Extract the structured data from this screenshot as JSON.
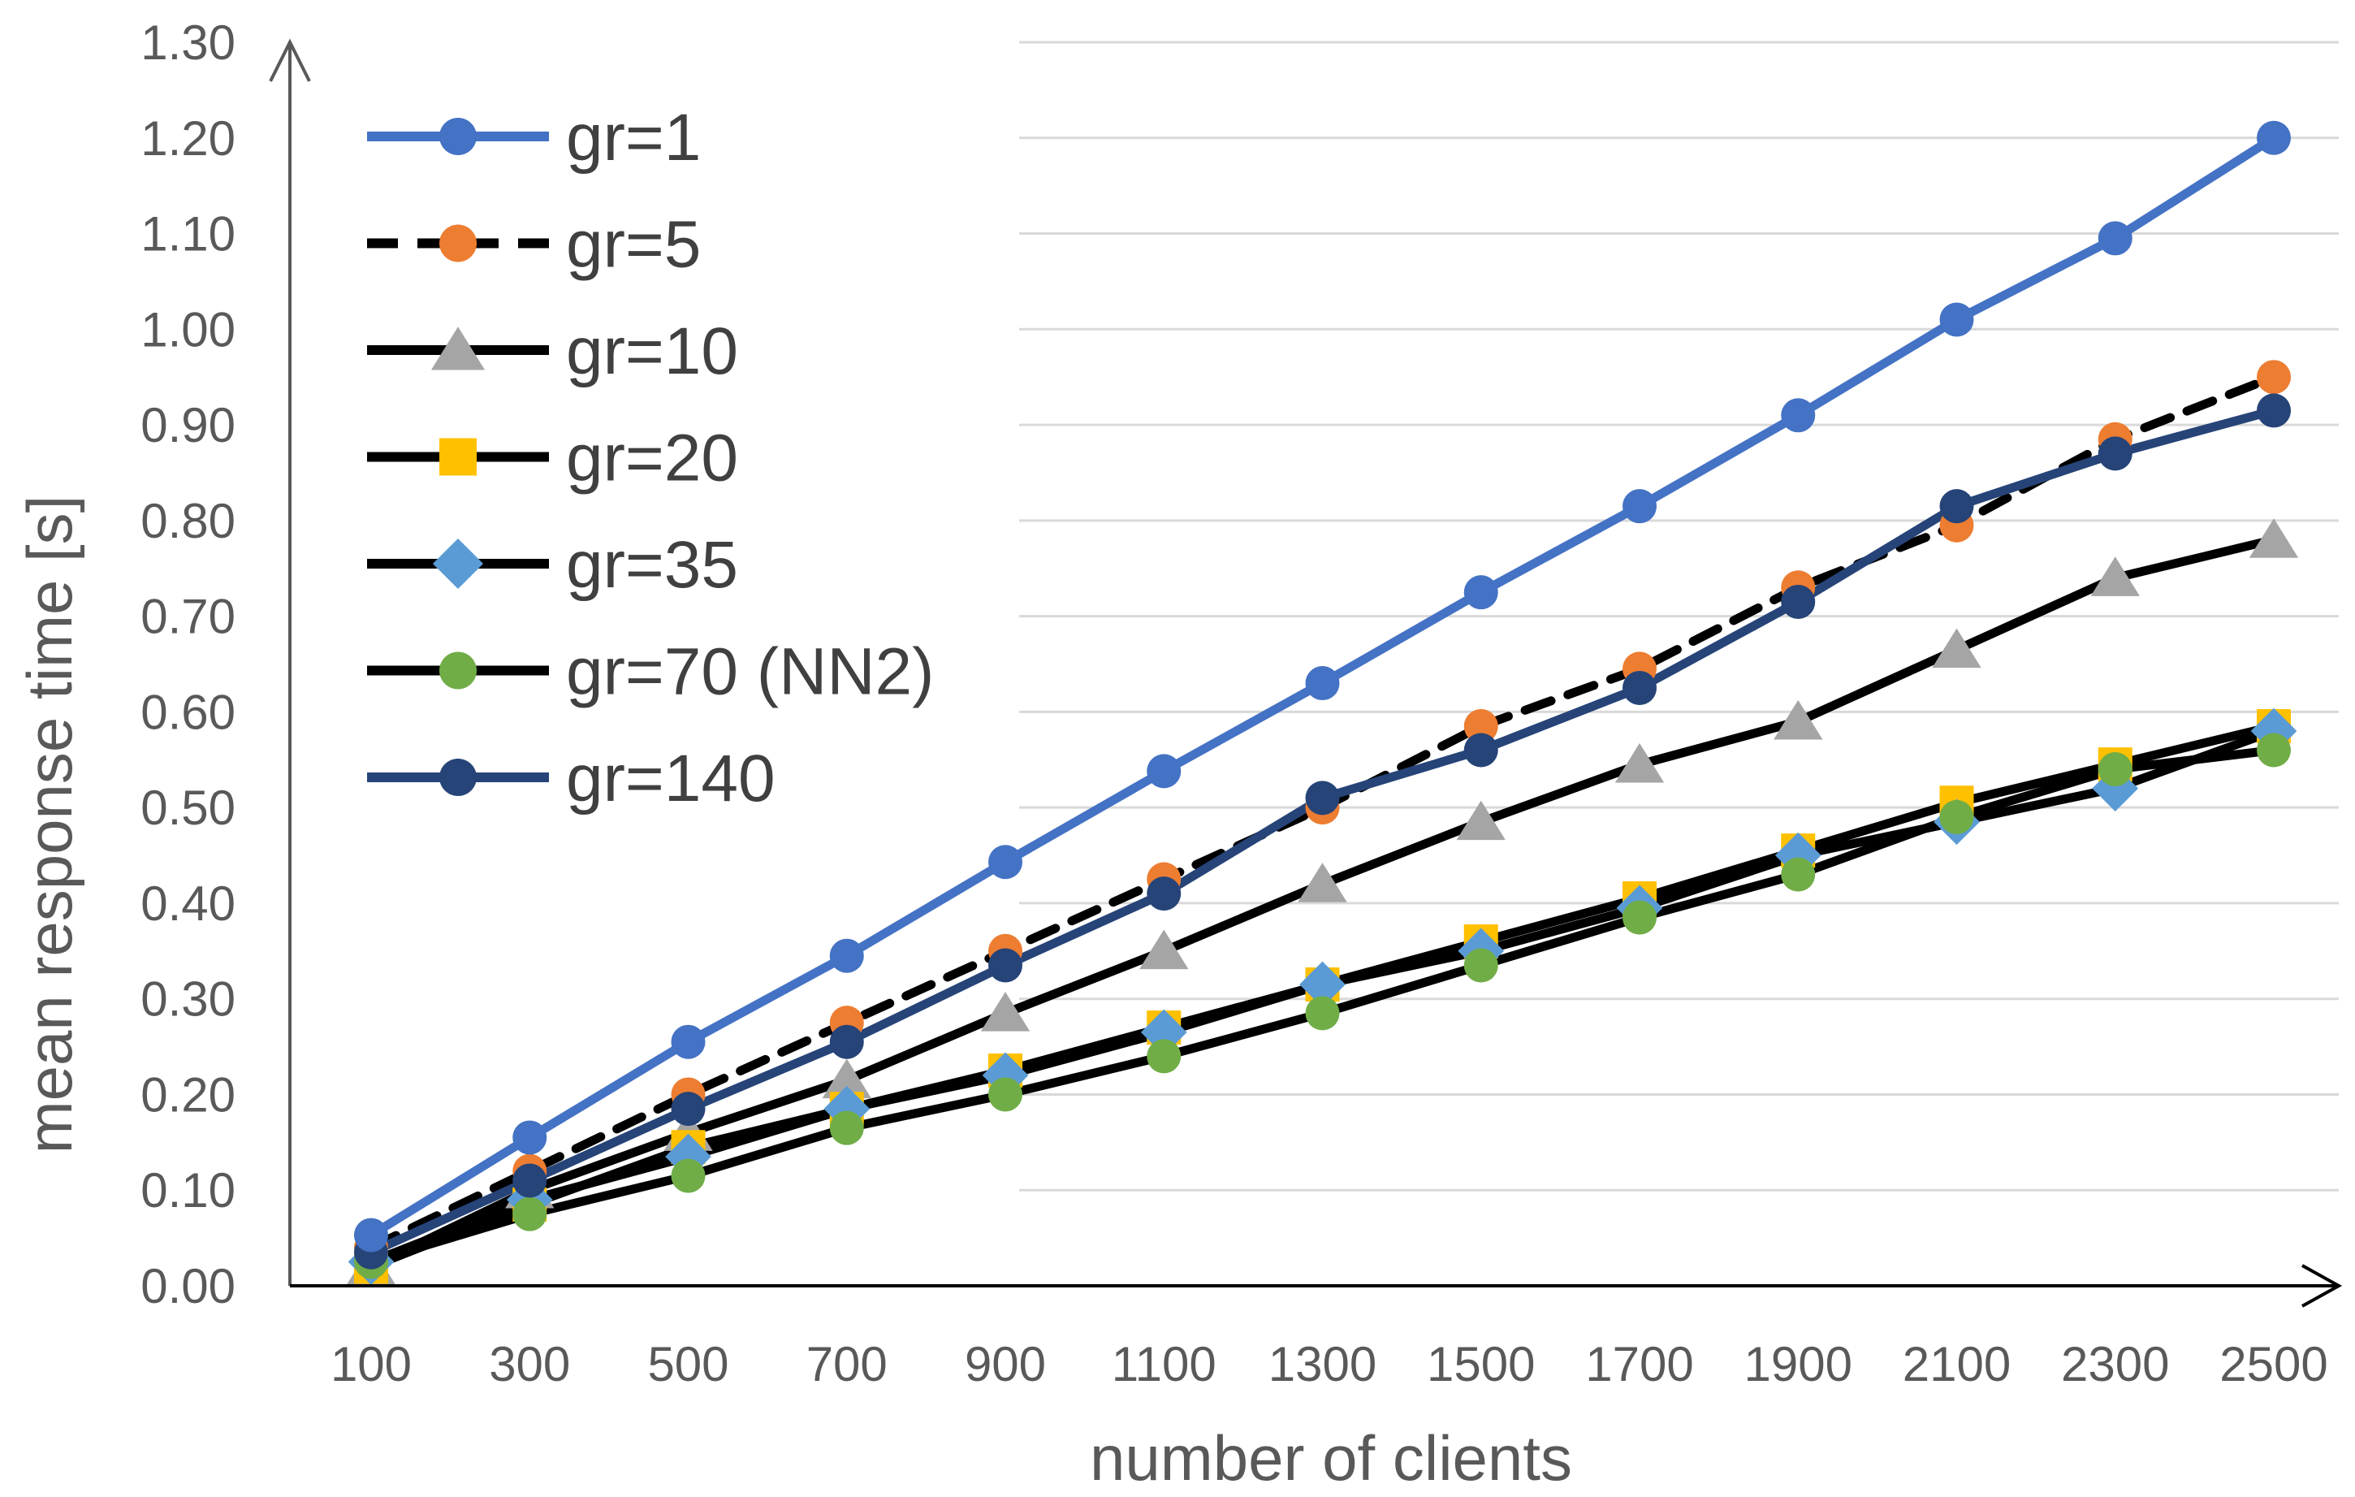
{
  "chart_data": {
    "type": "line",
    "title": "",
    "xlabel": "number of clients",
    "ylabel": "mean response time [s]",
    "categories": [
      "100",
      "300",
      "500",
      "700",
      "900",
      "1100",
      "1300",
      "1500",
      "1700",
      "1900",
      "2100",
      "2300",
      "2500"
    ],
    "ylim": [
      0,
      1.3
    ],
    "yticks": [
      "0.00",
      "0.10",
      "0.20",
      "0.30",
      "0.40",
      "0.50",
      "0.60",
      "0.70",
      "0.80",
      "0.90",
      "1.00",
      "1.10",
      "1.20",
      "1.30"
    ],
    "grid": true,
    "legend_position": "top-left",
    "series": [
      {
        "name": "gr=1",
        "line_color": "#4472C4",
        "marker": "circle",
        "marker_color": "#4472C4",
        "dashed": false,
        "values": [
          0.053,
          0.155,
          0.255,
          0.345,
          0.443,
          0.538,
          0.63,
          0.725,
          0.815,
          0.91,
          1.01,
          1.095,
          1.2
        ]
      },
      {
        "name": "gr=5",
        "line_color": "#000000",
        "marker": "circle",
        "marker_color": "#ED7D31",
        "dashed": true,
        "values": [
          0.04,
          0.12,
          0.2,
          0.275,
          0.35,
          0.425,
          0.5,
          0.585,
          0.645,
          0.73,
          0.795,
          0.885,
          0.95
        ]
      },
      {
        "name": "gr=10",
        "line_color": "#000000",
        "marker": "triangle",
        "marker_color": "#A5A5A5",
        "dashed": false,
        "values": [
          0.02,
          0.1,
          0.16,
          0.215,
          0.285,
          0.35,
          0.42,
          0.485,
          0.545,
          0.59,
          0.665,
          0.74,
          0.78
        ]
      },
      {
        "name": "gr=20",
        "line_color": "#000000",
        "marker": "square",
        "marker_color": "#FFC000",
        "dashed": false,
        "values": [
          0.02,
          0.085,
          0.145,
          0.185,
          0.225,
          0.27,
          0.315,
          0.36,
          0.405,
          0.455,
          0.505,
          0.545,
          0.585
        ]
      },
      {
        "name": "gr=35",
        "line_color": "#000000",
        "marker": "diamond",
        "marker_color": "#5B9BD5",
        "dashed": false,
        "values": [
          0.025,
          0.09,
          0.135,
          0.185,
          0.22,
          0.265,
          0.315,
          0.35,
          0.395,
          0.45,
          0.485,
          0.52,
          0.58
        ]
      },
      {
        "name": "gr=70 (NN2)",
        "line_color": "#000000",
        "marker": "circle",
        "marker_color": "#70AD47",
        "dashed": false,
        "values": [
          0.025,
          0.075,
          0.115,
          0.165,
          0.2,
          0.24,
          0.285,
          0.335,
          0.385,
          0.43,
          0.49,
          0.54,
          0.56
        ]
      },
      {
        "name": "gr=140",
        "line_color": "#264478",
        "marker": "circle",
        "marker_color": "#264478",
        "dashed": false,
        "values": [
          0.035,
          0.11,
          0.185,
          0.255,
          0.335,
          0.41,
          0.51,
          0.56,
          0.625,
          0.715,
          0.815,
          0.87,
          0.915
        ]
      }
    ]
  }
}
